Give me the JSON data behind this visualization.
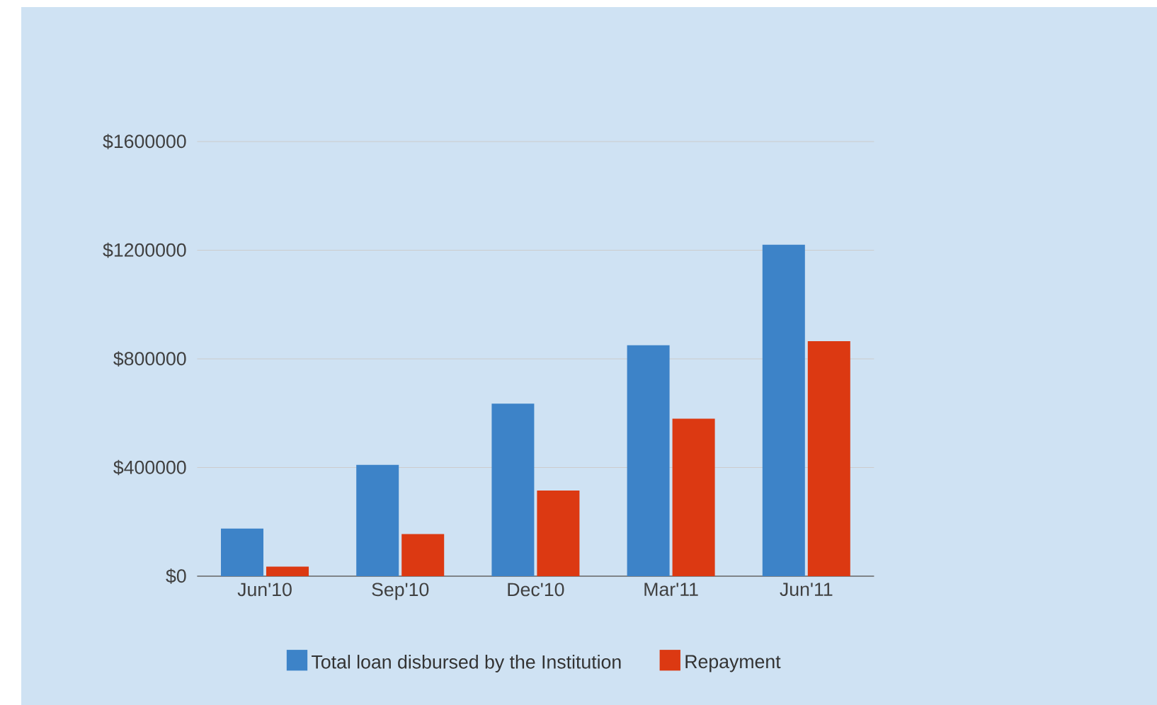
{
  "chart_data": {
    "type": "bar",
    "categories": [
      "Jun'10",
      "Sep'10",
      "Dec'10",
      "Mar'11",
      "Jun'11"
    ],
    "series": [
      {
        "name": "Total loan disbursed by the Institution",
        "color": "#3d83c8",
        "values": [
          175000,
          410000,
          635000,
          850000,
          1220000
        ]
      },
      {
        "name": "Repayment",
        "color": "#dc3912",
        "values": [
          35000,
          155000,
          315000,
          580000,
          865000
        ]
      }
    ],
    "ylim": [
      0,
      1600000
    ],
    "yticks": [
      {
        "value": 0,
        "label": "$0"
      },
      {
        "value": 400000,
        "label": "$400000"
      },
      {
        "value": 800000,
        "label": "$800000"
      },
      {
        "value": 1200000,
        "label": "$1200000"
      },
      {
        "value": 1600000,
        "label": "$1600000"
      }
    ],
    "grid": "y",
    "legend": "bottom"
  }
}
